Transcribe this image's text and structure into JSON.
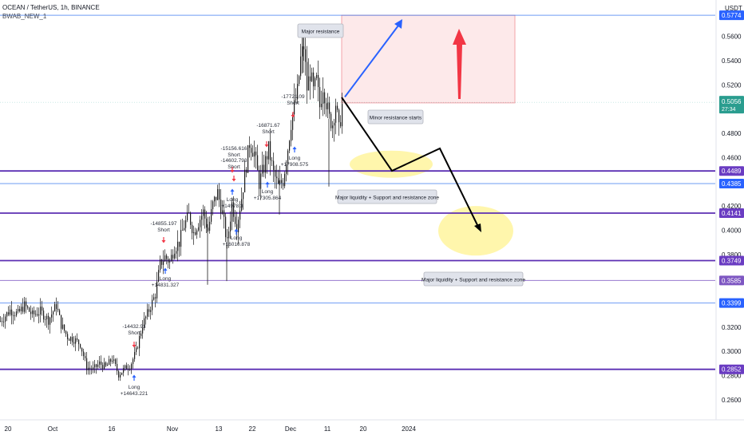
{
  "header": {
    "title": "OCEAN / TetherUS, 1h, BINANCE",
    "indicator": "BWAB_NEW_1",
    "currency": "USDT"
  },
  "colors": {
    "candle": "#1b1b1b",
    "purple_line": "#5b2fb3",
    "blue_line": "#3d7bf0",
    "price_badge_blue": "#2962ff",
    "price_badge_purple": "#6a3cc2",
    "price_badge_teal": "#2a9d8f",
    "resistance_box_fill": "#fde9ea",
    "resistance_box_border": "#f3a3a8",
    "arrow_red": "#f23645",
    "arrow_blue": "#2962ff",
    "liquidity_ellipse": "#fff59d"
  },
  "chart_data": {
    "type": "candlestick",
    "y_axis": {
      "ylim": [
        0.2435,
        0.59
      ],
      "tick_labels": [
        "0.5600",
        "0.5400",
        "0.5200",
        "0.4800",
        "0.4600",
        "0.4200",
        "0.4000",
        "0.3800",
        "0.3400",
        "0.3200",
        "0.3000",
        "0.2800",
        "0.2600"
      ],
      "tick_values": [
        0.56,
        0.54,
        0.52,
        0.48,
        0.46,
        0.42,
        0.4,
        0.38,
        0.34,
        0.32,
        0.3,
        0.28,
        0.26
      ]
    },
    "x_axis": {
      "labels": [
        "20",
        "Oct",
        "16",
        "Nov",
        "13",
        "22",
        "Dec",
        "11",
        "20",
        "2024"
      ]
    },
    "price_levels": [
      {
        "value": 0.5774,
        "label": "0.5774",
        "style": "blue"
      },
      {
        "value": 0.4489,
        "label": "0.4489",
        "style": "purple"
      },
      {
        "value": 0.4385,
        "label": "0.4385",
        "style": "blue"
      },
      {
        "value": 0.4141,
        "label": "0.4141",
        "style": "purple"
      },
      {
        "value": 0.3749,
        "label": "0.3749",
        "style": "purple"
      },
      {
        "value": 0.3585,
        "label": "0.3585",
        "style": "purple_light"
      },
      {
        "value": 0.3399,
        "label": "0.3399",
        "style": "blue"
      },
      {
        "value": 0.2852,
        "label": "0.2852",
        "style": "purple"
      }
    ],
    "current_price": {
      "value": 0.5056,
      "label": "0.5056",
      "countdown": "27:34"
    },
    "trade_labels": [
      {
        "lines": [
          "-14855.197",
          "Short"
        ],
        "kind": "short"
      },
      {
        "lines": [
          "Long",
          "+14831.327"
        ],
        "kind": "long"
      },
      {
        "lines": [
          "-14432.93",
          "Short"
        ],
        "kind": "short"
      },
      {
        "lines": [
          "Long",
          "+14643.221"
        ],
        "kind": "long"
      },
      {
        "lines": [
          "-15156.616",
          "Short"
        ],
        "kind": "short"
      },
      {
        "lines": [
          "-14602.793",
          "Short"
        ],
        "kind": "short"
      },
      {
        "lines": [
          "Long",
          "+14978.3"
        ],
        "kind": "long"
      },
      {
        "lines": [
          "Long",
          "+16010.878"
        ],
        "kind": "long"
      },
      {
        "lines": [
          "-16871.67",
          "Short"
        ],
        "kind": "short"
      },
      {
        "lines": [
          "Long",
          "+17305.864"
        ],
        "kind": "long"
      },
      {
        "lines": [
          "-17721.09",
          "Short"
        ],
        "kind": "short"
      },
      {
        "lines": [
          "Long",
          "+17908.575"
        ],
        "kind": "long"
      }
    ],
    "annotations": [
      {
        "text": "Major resistance"
      },
      {
        "text": "Minor resistance starts"
      },
      {
        "text": "Major liquidity + Support and resistance zone"
      },
      {
        "text": "Major liquidity + Support and resistance zone"
      }
    ],
    "series": [
      {
        "kind": "close_path",
        "points": [
          [
            0,
            0.325
          ],
          [
            12,
            0.334
          ],
          [
            22,
            0.331
          ],
          [
            30,
            0.338
          ],
          [
            40,
            0.33
          ],
          [
            50,
            0.333
          ],
          [
            60,
            0.326
          ],
          [
            70,
            0.338
          ],
          [
            76,
            0.322
          ],
          [
            84,
            0.312
          ],
          [
            92,
            0.31
          ],
          [
            100,
            0.306
          ],
          [
            108,
            0.287
          ],
          [
            116,
            0.285
          ],
          [
            124,
            0.29
          ],
          [
            132,
            0.287
          ],
          [
            140,
            0.294
          ],
          [
            148,
            0.281
          ],
          [
            156,
            0.286
          ],
          [
            163,
            0.289
          ],
          [
            170,
            0.3
          ],
          [
            178,
            0.322
          ],
          [
            186,
            0.334
          ],
          [
            194,
            0.347
          ],
          [
            200,
            0.372
          ],
          [
            206,
            0.378
          ],
          [
            212,
            0.374
          ],
          [
            218,
            0.386
          ],
          [
            224,
            0.39
          ],
          [
            230,
            0.404
          ],
          [
            236,
            0.412
          ],
          [
            242,
            0.398
          ],
          [
            248,
            0.407
          ],
          [
            254,
            0.415
          ],
          [
            260,
            0.4
          ],
          [
            266,
            0.421
          ],
          [
            272,
            0.431
          ],
          [
            278,
            0.414
          ],
          [
            284,
            0.389
          ],
          [
            290,
            0.422
          ],
          [
            296,
            0.404
          ],
          [
            302,
            0.427
          ],
          [
            308,
            0.454
          ],
          [
            312,
            0.472
          ],
          [
            318,
            0.464
          ],
          [
            324,
            0.439
          ],
          [
            330,
            0.452
          ],
          [
            336,
            0.467
          ],
          [
            342,
            0.447
          ],
          [
            348,
            0.436
          ],
          [
            354,
            0.441
          ],
          [
            360,
            0.468
          ],
          [
            364,
            0.489
          ],
          [
            368,
            0.502
          ],
          [
            372,
            0.514
          ],
          [
            376,
            0.541
          ],
          [
            380,
            0.552
          ],
          [
            384,
            0.517
          ],
          [
            388,
            0.53
          ],
          [
            392,
            0.514
          ],
          [
            396,
            0.523
          ],
          [
            400,
            0.502
          ],
          [
            404,
            0.52
          ],
          [
            408,
            0.506
          ],
          [
            412,
            0.492
          ],
          [
            416,
            0.488
          ],
          [
            420,
            0.505
          ],
          [
            424,
            0.482
          ],
          [
            428,
            0.503
          ]
        ]
      }
    ]
  }
}
